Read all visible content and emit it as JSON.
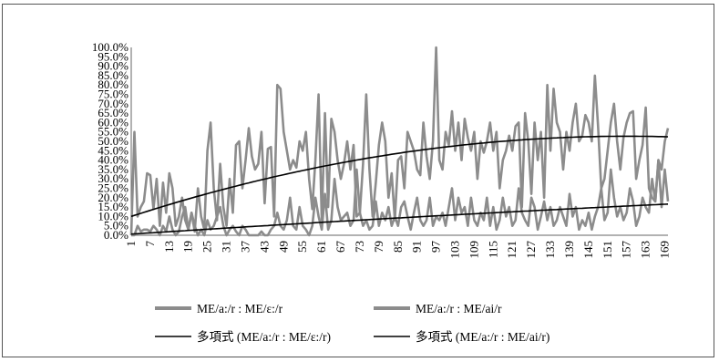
{
  "chart_data": {
    "type": "line",
    "x": [
      1,
      2,
      3,
      4,
      5,
      6,
      7,
      8,
      9,
      10,
      11,
      12,
      13,
      14,
      15,
      16,
      17,
      18,
      19,
      20,
      21,
      22,
      23,
      24,
      25,
      26,
      27,
      28,
      29,
      30,
      31,
      32,
      33,
      34,
      35,
      36,
      37,
      38,
      39,
      40,
      41,
      42,
      43,
      44,
      45,
      46,
      47,
      48,
      49,
      50,
      51,
      52,
      53,
      54,
      55,
      56,
      57,
      58,
      59,
      60,
      61,
      62,
      63,
      64,
      65,
      66,
      67,
      68,
      69,
      70,
      71,
      72,
      73,
      74,
      75,
      76,
      77,
      78,
      79,
      80,
      81,
      82,
      83,
      84,
      85,
      86,
      87,
      88,
      89,
      90,
      91,
      92,
      93,
      94,
      95,
      96,
      97,
      98,
      99,
      100,
      101,
      102,
      103,
      104,
      105,
      106,
      107,
      108,
      109,
      110,
      111,
      112,
      113,
      114,
      115,
      116,
      117,
      118,
      119,
      120,
      121,
      122,
      123,
      124,
      125,
      126,
      127,
      128,
      129,
      130,
      131,
      132,
      133,
      134,
      135,
      136,
      137,
      138,
      139,
      140,
      141,
      142,
      143,
      144,
      145,
      146,
      147,
      148,
      149,
      150,
      151,
      152,
      153,
      154,
      155,
      156,
      157,
      158,
      159,
      160,
      161,
      162,
      163,
      164,
      165,
      166,
      167,
      168,
      169,
      170
    ],
    "x_tick_labels": [
      "1",
      "7",
      "13",
      "19",
      "25",
      "31",
      "37",
      "43",
      "49",
      "55",
      "61",
      "67",
      "73",
      "79",
      "85",
      "91",
      "97",
      "103",
      "109",
      "115",
      "121",
      "127",
      "133",
      "139",
      "145",
      "151",
      "157",
      "163",
      "169"
    ],
    "y_tick_labels": [
      "0.0%",
      "5.0%",
      "10.0%",
      "15.0%",
      "20.0%",
      "25.0%",
      "30.0%",
      "35.0%",
      "40.0%",
      "45.0%",
      "50.0%",
      "55.0%",
      "60.0%",
      "65.0%",
      "70.0%",
      "75.0%",
      "80.0%",
      "85.0%",
      "90.0%",
      "95.0%",
      "100.0%"
    ],
    "ylim": [
      0,
      100
    ],
    "series": [
      {
        "name": "ME/a:/r : ME/ε:/r",
        "kind": "data",
        "color": "#8c8c8c",
        "values": [
          0,
          55,
          10,
          15,
          18,
          33,
          32,
          14,
          30,
          5,
          28,
          12,
          33,
          25,
          5,
          10,
          20,
          8,
          3,
          12,
          2,
          25,
          10,
          3,
          45,
          60,
          25,
          8,
          38,
          15,
          5,
          30,
          12,
          48,
          50,
          25,
          40,
          57,
          42,
          35,
          38,
          55,
          17,
          46,
          47,
          10,
          80,
          78,
          55,
          45,
          35,
          40,
          36,
          50,
          45,
          55,
          30,
          14,
          40,
          75,
          8,
          65,
          15,
          62,
          55,
          40,
          30,
          38,
          50,
          35,
          48,
          10,
          12,
          38,
          75,
          35,
          10,
          28,
          48,
          60,
          50,
          20,
          33,
          8,
          40,
          42,
          25,
          55,
          50,
          45,
          35,
          32,
          60,
          42,
          30,
          50,
          100,
          40,
          35,
          55,
          48,
          66,
          45,
          60,
          40,
          62,
          52,
          45,
          55,
          30,
          50,
          44,
          50,
          60,
          45,
          55,
          25,
          40,
          45,
          53,
          45,
          58,
          60,
          15,
          65,
          50,
          22,
          60,
          40,
          55,
          20,
          80,
          45,
          78,
          60,
          55,
          35,
          55,
          45,
          60,
          70,
          50,
          53,
          64,
          60,
          50,
          85,
          58,
          25,
          30,
          45,
          60,
          70,
          50,
          35,
          52,
          60,
          65,
          66,
          30,
          40,
          48,
          68,
          25,
          20,
          18,
          40,
          35,
          50,
          57
        ]
      },
      {
        "name": "ME/a:/r : ME/ai/r",
        "kind": "data",
        "color": "#8c8c8c",
        "values": [
          0,
          0,
          5,
          2,
          3,
          3,
          2,
          5,
          3,
          0,
          5,
          2,
          10,
          3,
          0,
          2,
          10,
          15,
          3,
          12,
          5,
          0,
          3,
          0,
          8,
          3,
          5,
          10,
          15,
          5,
          0,
          3,
          5,
          2,
          0,
          5,
          3,
          0,
          0,
          0,
          0,
          2,
          0,
          0,
          3,
          5,
          12,
          5,
          3,
          8,
          20,
          5,
          3,
          15,
          5,
          3,
          0,
          5,
          20,
          10,
          3,
          22,
          3,
          8,
          30,
          15,
          8,
          10,
          12,
          5,
          8,
          35,
          12,
          5,
          8,
          3,
          5,
          18,
          5,
          12,
          8,
          15,
          5,
          10,
          5,
          15,
          18,
          10,
          3,
          12,
          20,
          8,
          5,
          8,
          20,
          5,
          10,
          8,
          12,
          5,
          15,
          25,
          8,
          20,
          12,
          15,
          5,
          20,
          8,
          5,
          12,
          8,
          20,
          5,
          15,
          3,
          8,
          20,
          10,
          15,
          5,
          8,
          25,
          12,
          8,
          5,
          20,
          15,
          3,
          10,
          18,
          8,
          15,
          5,
          8,
          15,
          10,
          5,
          22,
          10,
          15,
          3,
          8,
          5,
          12,
          3,
          10,
          15,
          25,
          8,
          12,
          35,
          20,
          10,
          15,
          8,
          12,
          25,
          18,
          5,
          10,
          20,
          15,
          12,
          30,
          18,
          40,
          15,
          35,
          18
        ]
      },
      {
        "name": "多項式 (ME/a:/r : ME/ε:/r)",
        "kind": "trend",
        "color": "#000000",
        "poly": [
          9.5,
          0.55,
          -0.00175
        ]
      },
      {
        "name": "多項式 (ME/a:/r : ME/ai/r)",
        "kind": "trend",
        "color": "#000000",
        "poly": [
          0.5,
          0.11,
          -9e-05
        ]
      }
    ],
    "legend_position": "bottom"
  }
}
